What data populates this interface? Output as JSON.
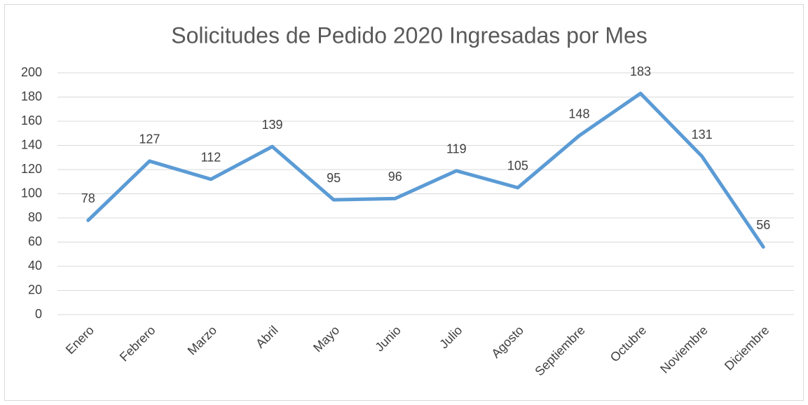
{
  "chart_data": {
    "type": "line",
    "title": "Solicitudes de Pedido 2020 Ingresadas por Mes",
    "categories": [
      "Enero",
      "Febrero",
      "Marzo",
      "Abril",
      "Mayo",
      "Junio",
      "Julio",
      "Agosto",
      "Septiembre",
      "Octubre",
      "Noviembre",
      "Diciembre"
    ],
    "values": [
      78,
      127,
      112,
      139,
      95,
      96,
      119,
      105,
      148,
      183,
      131,
      56
    ],
    "color": "#5b9bd5",
    "ylim": [
      0,
      200
    ],
    "yticks": [
      0,
      20,
      40,
      60,
      80,
      100,
      120,
      140,
      160,
      180,
      200
    ],
    "grid": true,
    "data_labels": true
  }
}
